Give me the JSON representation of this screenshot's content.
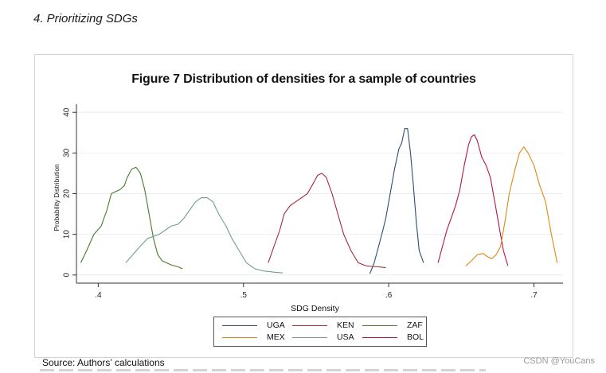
{
  "page": {
    "section_heading": "4. Prioritizing SDGs",
    "source_text": "Source: Authors’ calculations",
    "watermark": "CSDN @YouCans"
  },
  "colors": {
    "UGA": "#2d4d73",
    "KEN": "#a3283a",
    "ZAF": "#4a7a2a",
    "MEX": "#d98a12",
    "USA": "#6f9e8c",
    "BOL": "#b3134e",
    "grid": "#e8eef2",
    "axis": "#333333"
  },
  "chart_data": {
    "type": "line",
    "title": "Figure 7 Distribution of densities for a sample of countries",
    "xlabel": "SDG Density",
    "ylabel": "Probability Distribution",
    "xlim": [
      0.385,
      0.72
    ],
    "ylim": [
      -2,
      42
    ],
    "xticks": [
      0.4,
      0.5,
      0.6,
      0.7
    ],
    "xtick_labels": [
      ".4",
      ".5",
      ".6",
      ".7"
    ],
    "yticks": [
      0,
      10,
      20,
      30,
      40
    ],
    "ytick_labels": [
      "0",
      "10",
      "20",
      "30",
      "40"
    ],
    "grid": "horizontal",
    "legend_position": "bottom",
    "legend": [
      "UGA",
      "KEN",
      "ZAF",
      "MEX",
      "USA",
      "BOL"
    ],
    "series": [
      {
        "name": "ZAF",
        "x": [
          0.388,
          0.392,
          0.397,
          0.402,
          0.406,
          0.409,
          0.412,
          0.415,
          0.418,
          0.42,
          0.423,
          0.426,
          0.429,
          0.432,
          0.435,
          0.438,
          0.441,
          0.444,
          0.447,
          0.45,
          0.455,
          0.458
        ],
        "y": [
          3,
          6,
          10,
          12,
          16,
          20,
          20.5,
          21,
          22,
          24,
          26,
          26.5,
          25,
          21,
          15,
          9,
          5,
          3.5,
          3,
          2.5,
          2,
          1.5
        ]
      },
      {
        "name": "USA",
        "x": [
          0.419,
          0.425,
          0.43,
          0.434,
          0.438,
          0.442,
          0.446,
          0.45,
          0.455,
          0.459,
          0.463,
          0.467,
          0.471,
          0.475,
          0.479,
          0.483,
          0.488,
          0.492,
          0.497,
          0.502,
          0.508,
          0.514,
          0.521,
          0.527
        ],
        "y": [
          3,
          5.5,
          7.5,
          9,
          9.5,
          10,
          11,
          12,
          12.5,
          14,
          16,
          18,
          19,
          19,
          18,
          15,
          12,
          9,
          6,
          3,
          1.5,
          1,
          0.7,
          0.5
        ]
      },
      {
        "name": "KEN",
        "x": [
          0.517,
          0.521,
          0.525,
          0.528,
          0.532,
          0.536,
          0.54,
          0.544,
          0.548,
          0.551,
          0.554,
          0.557,
          0.561,
          0.565,
          0.569,
          0.574,
          0.579,
          0.584,
          0.588,
          0.593,
          0.598
        ],
        "y": [
          3,
          7,
          11,
          15,
          17,
          18,
          19,
          20,
          22.5,
          24.5,
          25,
          24,
          20,
          15,
          10,
          6,
          3,
          2.3,
          2.1,
          2,
          1.8
        ]
      },
      {
        "name": "UGA",
        "x": [
          0.587,
          0.59,
          0.593,
          0.596,
          0.598,
          0.601,
          0.604,
          0.607,
          0.609,
          0.611,
          0.613,
          0.615,
          0.617,
          0.619,
          0.621,
          0.624
        ],
        "y": [
          0.3,
          3,
          7,
          11,
          14,
          20,
          26,
          31,
          32.5,
          36,
          36,
          30,
          22,
          13,
          6,
          3
        ]
      },
      {
        "name": "BOL",
        "x": [
          0.634,
          0.637,
          0.64,
          0.643,
          0.646,
          0.649,
          0.652,
          0.655,
          0.657,
          0.659,
          0.661,
          0.664,
          0.667,
          0.67,
          0.673,
          0.676,
          0.679,
          0.682
        ],
        "y": [
          3,
          7,
          11,
          14,
          17,
          21,
          27,
          32,
          34,
          34.5,
          33,
          29,
          27,
          24,
          18,
          12,
          6,
          2.3
        ]
      },
      {
        "name": "MEX",
        "x": [
          0.653,
          0.657,
          0.661,
          0.665,
          0.668,
          0.671,
          0.674,
          0.677,
          0.68,
          0.683,
          0.687,
          0.69,
          0.693,
          0.696,
          0.7,
          0.704,
          0.708,
          0.712,
          0.716
        ],
        "y": [
          2.2,
          3.5,
          5,
          5.3,
          4.5,
          4,
          5,
          7,
          13,
          20,
          26,
          30,
          31.5,
          30,
          27,
          22,
          18,
          10,
          3
        ]
      }
    ]
  }
}
